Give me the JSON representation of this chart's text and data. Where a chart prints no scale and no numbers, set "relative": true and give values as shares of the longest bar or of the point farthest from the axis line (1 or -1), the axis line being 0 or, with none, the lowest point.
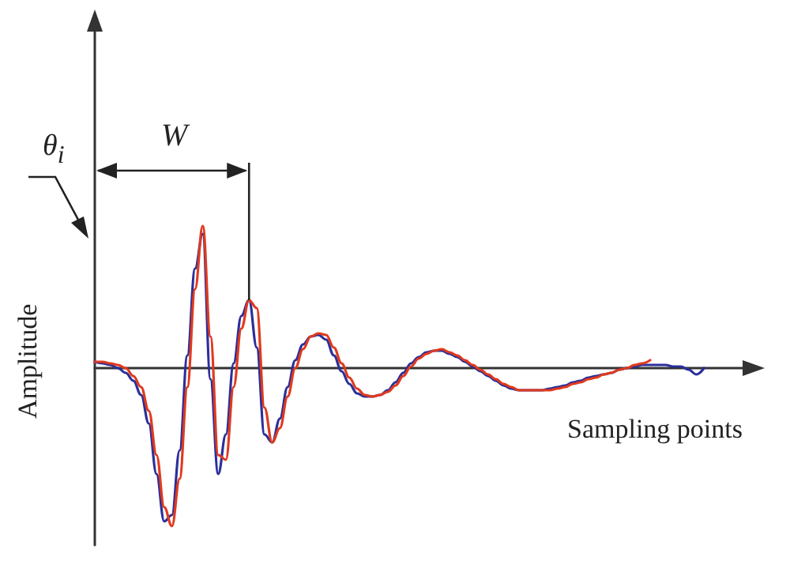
{
  "chart_data": {
    "type": "line",
    "relative": true,
    "xlabel": "Sampling points",
    "ylabel": "Amplitude",
    "annotations": [
      "θ$_{i}$",
      "W"
    ],
    "marker": "none",
    "line_style": "solid",
    "grid": false,
    "categories": [
      null,
      null,
      null,
      null,
      null,
      null,
      null,
      null,
      null,
      null,
      null,
      null,
      null,
      null,
      null,
      null,
      null,
      null,
      null,
      null,
      null,
      null,
      null,
      null,
      null,
      null,
      null,
      null,
      null,
      null,
      null,
      null,
      null,
      null,
      null,
      null,
      null,
      null,
      null,
      null,
      null,
      null,
      null,
      null,
      null,
      null,
      null,
      null,
      null,
      null,
      null,
      null,
      null,
      null,
      null,
      null,
      null,
      null,
      null,
      null,
      null,
      null,
      null,
      null,
      null,
      null,
      null,
      null,
      null,
      null,
      null,
      null,
      null,
      null,
      null,
      null,
      null,
      null,
      null,
      null,
      null,
      null,
      null,
      null,
      null
    ],
    "series": [
      {
        "color": "#2b2f9a",
        "values": [
          0.04,
          0.03,
          0.02,
          0.0,
          -0.03,
          -0.08,
          -0.17,
          -0.35,
          -0.67,
          -0.97,
          -0.93,
          -0.52,
          0.08,
          0.63,
          0.85,
          -0.07,
          -0.67,
          -0.42,
          0.03,
          0.33,
          0.43,
          0.13,
          -0.42,
          -0.47,
          -0.32,
          -0.12,
          0.05,
          0.15,
          0.2,
          0.21,
          0.18,
          0.08,
          -0.02,
          -0.1,
          -0.16,
          -0.18,
          -0.18,
          -0.17,
          -0.14,
          -0.09,
          -0.03,
          0.03,
          0.07,
          0.1,
          0.11,
          0.11,
          0.09,
          0.07,
          0.04,
          0.01,
          -0.02,
          -0.05,
          -0.08,
          -0.11,
          -0.13,
          -0.14,
          -0.14,
          -0.14,
          -0.14,
          -0.13,
          -0.12,
          -0.11,
          -0.09,
          -0.08,
          -0.06,
          -0.05,
          -0.04,
          -0.03,
          -0.01,
          0.0,
          0.01,
          0.02,
          0.02,
          0.02,
          0.02,
          0.01,
          0.01,
          -0.01,
          -0.04,
          0.0,
          null,
          null,
          null,
          null,
          null
        ]
      },
      {
        "color": "#e03a1e",
        "values": [
          0.04,
          0.04,
          0.03,
          0.02,
          0.0,
          -0.05,
          -0.12,
          -0.27,
          -0.55,
          -0.88,
          -1.0,
          -0.7,
          -0.12,
          0.5,
          0.9,
          0.2,
          -0.55,
          -0.58,
          -0.12,
          0.25,
          0.43,
          0.38,
          -0.25,
          -0.47,
          -0.38,
          -0.18,
          0.0,
          0.12,
          0.2,
          0.22,
          0.21,
          0.13,
          0.03,
          -0.06,
          -0.13,
          -0.17,
          -0.18,
          -0.17,
          -0.15,
          -0.11,
          -0.05,
          0.01,
          0.06,
          0.09,
          0.11,
          0.12,
          0.1,
          0.08,
          0.05,
          0.02,
          -0.01,
          -0.04,
          -0.07,
          -0.1,
          -0.12,
          -0.14,
          -0.14,
          -0.14,
          -0.14,
          -0.14,
          -0.13,
          -0.12,
          -0.1,
          -0.09,
          -0.07,
          -0.06,
          -0.04,
          -0.03,
          -0.01,
          0.0,
          0.02,
          0.03,
          0.05,
          null,
          null,
          null,
          null,
          null,
          null,
          null,
          null,
          null,
          null,
          null,
          null
        ]
      }
    ]
  }
}
